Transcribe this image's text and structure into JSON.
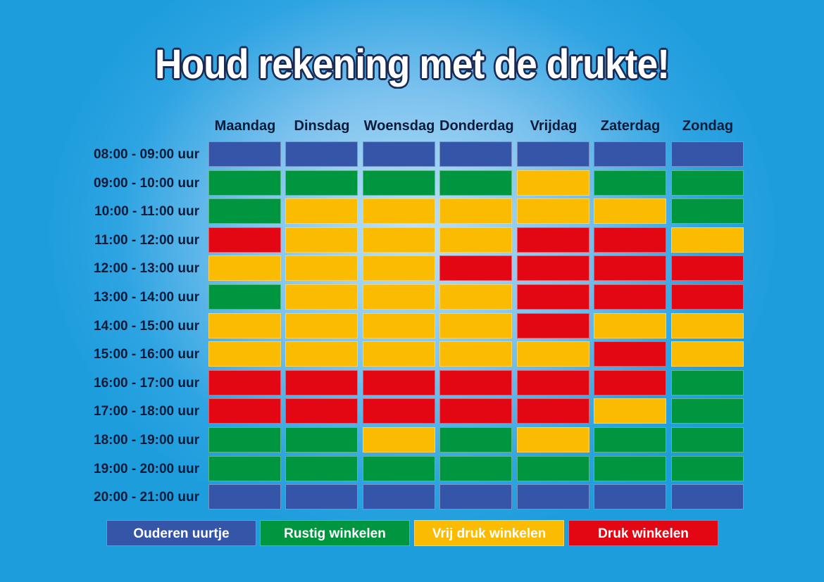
{
  "title": "Houd rekening met de drukte!",
  "days": [
    "Maandag",
    "Dinsdag",
    "Woensdag",
    "Donderdag",
    "Vrijdag",
    "Zaterdag",
    "Zondag"
  ],
  "times": [
    "08:00 - 09:00 uur",
    "09:00 - 10:00 uur",
    "10:00 - 11:00 uur",
    "11:00 - 12:00 uur",
    "12:00 - 13:00 uur",
    "13:00 - 14:00 uur",
    "14:00 - 15:00 uur",
    "15:00 - 16:00 uur",
    "16:00 - 17:00 uur",
    "17:00 - 18:00 uur",
    "18:00 - 19:00 uur",
    "19:00 - 20:00 uur",
    "20:00 - 21:00 uur"
  ],
  "categories": {
    "O": {
      "label": "Ouderen uurtje",
      "color": "#3556a8"
    },
    "R": {
      "label": "Rustig winkelen",
      "color": "#00963f"
    },
    "V": {
      "label": "Vrij druk winkelen",
      "color": "#fbbb00"
    },
    "D": {
      "label": "Druk winkelen",
      "color": "#e30613"
    }
  },
  "legend": [
    {
      "key": "O",
      "label": "Ouderen uurtje"
    },
    {
      "key": "R",
      "label": "Rustig winkelen"
    },
    {
      "key": "V",
      "label": "Vrij druk winkelen"
    },
    {
      "key": "D",
      "label": "Druk winkelen"
    }
  ],
  "grid": [
    [
      "O",
      "O",
      "O",
      "O",
      "O",
      "O",
      "O"
    ],
    [
      "R",
      "R",
      "R",
      "R",
      "V",
      "R",
      "R"
    ],
    [
      "R",
      "V",
      "V",
      "V",
      "V",
      "V",
      "R"
    ],
    [
      "D",
      "V",
      "V",
      "V",
      "D",
      "D",
      "V"
    ],
    [
      "V",
      "V",
      "V",
      "D",
      "D",
      "D",
      "D"
    ],
    [
      "R",
      "V",
      "V",
      "V",
      "D",
      "D",
      "D"
    ],
    [
      "V",
      "V",
      "V",
      "V",
      "D",
      "V",
      "V"
    ],
    [
      "V",
      "V",
      "V",
      "V",
      "V",
      "D",
      "V"
    ],
    [
      "D",
      "D",
      "D",
      "D",
      "D",
      "D",
      "R"
    ],
    [
      "D",
      "D",
      "D",
      "D",
      "D",
      "V",
      "R"
    ],
    [
      "R",
      "R",
      "V",
      "R",
      "V",
      "R",
      "R"
    ],
    [
      "R",
      "R",
      "R",
      "R",
      "R",
      "R",
      "R"
    ],
    [
      "O",
      "O",
      "O",
      "O",
      "O",
      "O",
      "O"
    ]
  ]
}
